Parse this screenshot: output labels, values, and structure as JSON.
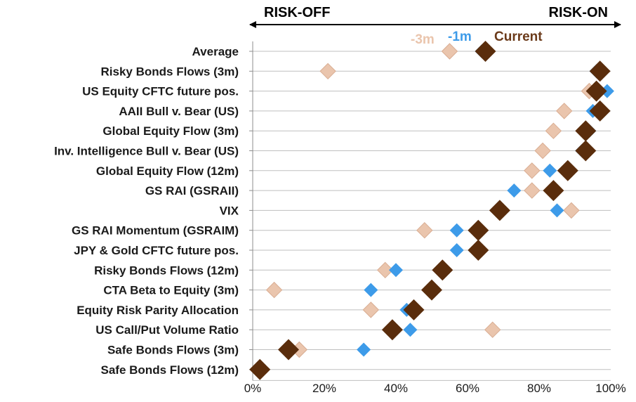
{
  "chart_data": {
    "type": "scatter",
    "title": "",
    "xlabel": "",
    "ylabel": "",
    "header_left": "RISK-OFF",
    "header_right": "RISK-ON",
    "xlim": [
      0,
      100
    ],
    "xticks": [
      "0%",
      "20%",
      "40%",
      "60%",
      "80%",
      "100%"
    ],
    "xtick_values": [
      0,
      20,
      40,
      60,
      80,
      100
    ],
    "grid": "horizontal lines per category",
    "legend_placement": "top-right",
    "categories": [
      "Average",
      "Risky Bonds Flows (3m)",
      "US Equity CFTC future pos.",
      "AAII Bull v. Bear (US)",
      "Global Equity Flow (3m)",
      "Inv. Intelligence Bull v. Bear (US)",
      "Global Equity Flow (12m)",
      "GS RAI (GSRAII)",
      "VIX",
      "GS RAI Momentum (GSRAIM)",
      "JPY & Gold CFTC future pos.",
      "Risky Bonds Flows (12m)",
      "CTA Beta to Equity (3m)",
      "Equity Risk Parity Allocation",
      "US Call/Put Volume Ratio",
      "Safe Bonds Flows (3m)",
      "Safe Bonds Flows (12m)"
    ],
    "series": [
      {
        "name": "-3m",
        "color": "#eac5ad",
        "values": [
          55,
          21,
          94,
          87,
          84,
          81,
          78,
          78,
          89,
          48,
          63,
          37,
          6,
          33,
          67,
          13,
          2
        ]
      },
      {
        "name": "-1m",
        "color": "#3d9be9",
        "values": [
          64,
          96,
          99,
          95,
          94,
          92,
          83,
          73,
          85,
          57,
          57,
          40,
          33,
          43,
          44,
          31,
          2
        ]
      },
      {
        "name": "Current",
        "color": "#5a2d0c",
        "values": [
          65,
          97,
          96,
          97,
          93,
          93,
          88,
          84,
          69,
          63,
          63,
          53,
          50,
          45,
          39,
          10,
          2
        ]
      }
    ]
  }
}
